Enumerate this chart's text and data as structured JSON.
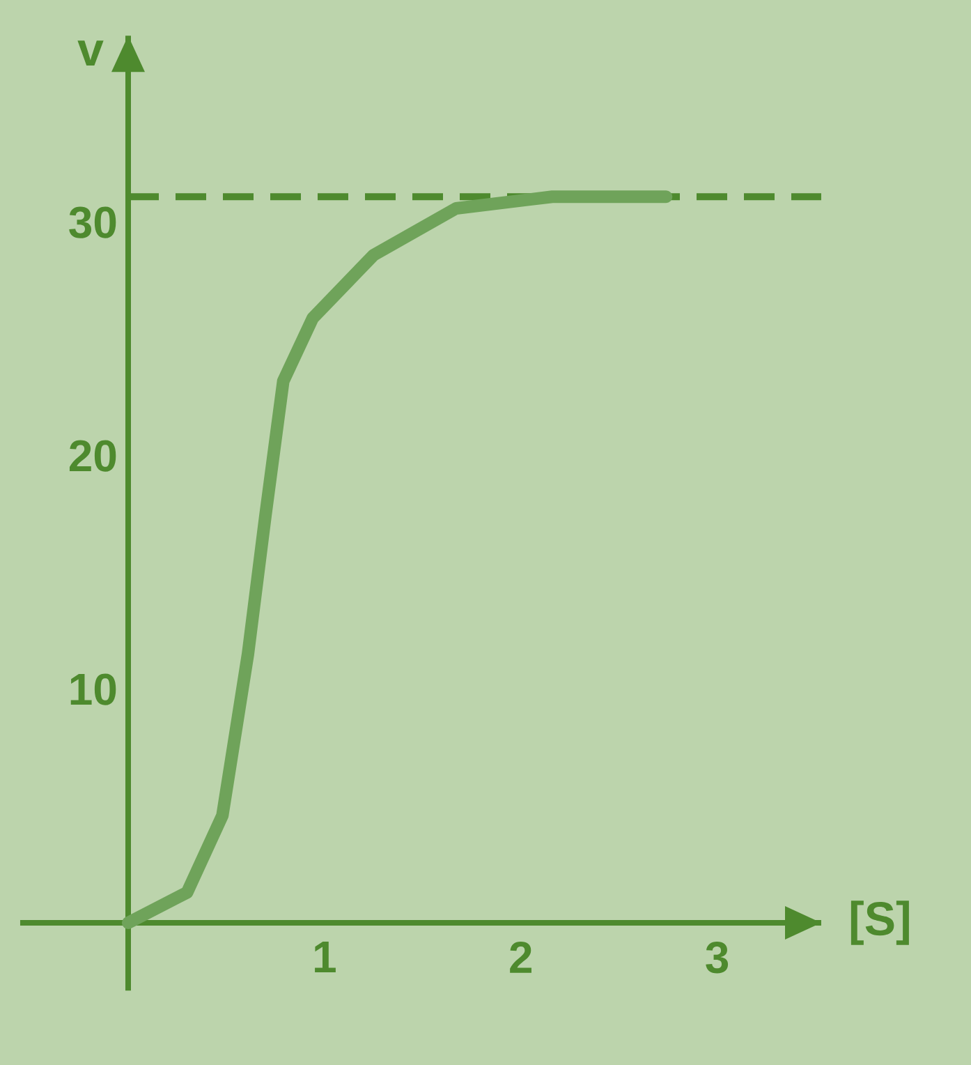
{
  "chart_data": {
    "type": "line",
    "xlabel": "[S]",
    "ylabel": "v",
    "xlim": [
      -0.55,
      3.53
    ],
    "ylim": [
      -2.9,
      38
    ],
    "xticks": [
      1,
      2,
      3
    ],
    "yticks": [
      10,
      20,
      30
    ],
    "series": [
      {
        "color": "#6fa35a",
        "x": [
          0,
          0.3,
          0.48,
          0.61,
          0.7,
          0.79,
          0.94,
          1.25,
          1.67,
          2.16,
          2.74
        ],
        "values": [
          0,
          1.3,
          4.6,
          11.5,
          17.5,
          23.2,
          25.9,
          28.6,
          30.6,
          31.1,
          31.1
        ]
      }
    ],
    "ref_lines": [
      {
        "axis": "y",
        "value": 31.1,
        "color": "#4e8a2e",
        "line_style": "dashed"
      }
    ]
  }
}
